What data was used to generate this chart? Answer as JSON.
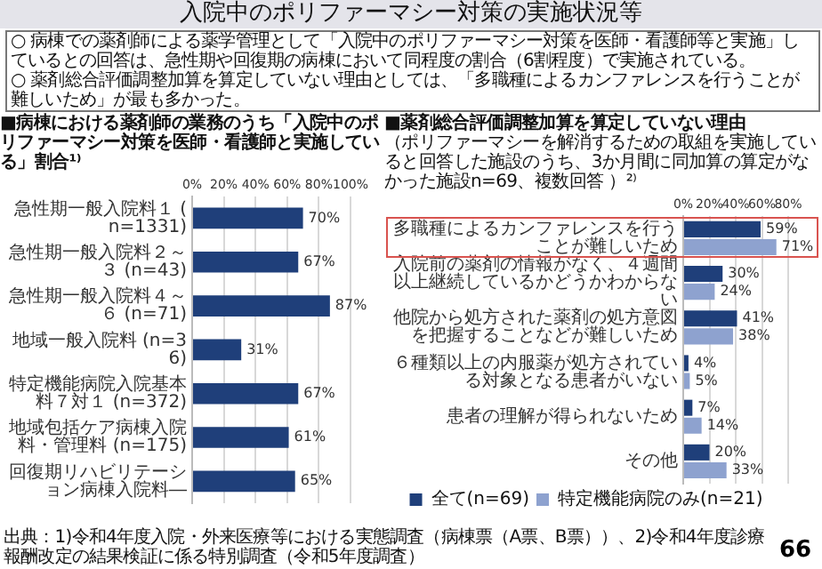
{
  "chart_data": [
    {
      "type": "other",
      "title": "入院中のポリファーマシー対策の実施状況等",
      "annotations": [
        "○ 病棟での薬剤師による薬学管理として「入院中のポリファーマシー対策を医師・看護師等と実施」しているとの回答は、急性期や回復期の病棟において同程度の割合（6割程度）で実施されている。",
        "○ 薬剤総合評価調整加算を算定していない理由としては、「多職種によるカンファレンスを行うことが難しいため」が最も多かった。"
      ]
    },
    {
      "type": "bar",
      "orientation": "horizontal",
      "title": "■病棟における薬剤師の業務のうち「入院中のポリファーマシー対策を医師・看護師と実施している」割合¹⁾",
      "categories": [
        "急性期一般入院料１ (n=1331)",
        "急性期一般入院料２～３ (n=43)",
        "急性期一般入院料４～６ (n=71)",
        "地域一般入院料 (n=36)",
        "特定機能病院入院基本料７対１ (n=372)",
        "地域包括ケア病棟入院料・管理料 (n=175)",
        "回復期リハビリテーション病棟入院料―"
      ],
      "values": [
        70,
        67,
        87,
        31,
        67,
        61,
        65
      ],
      "color": "#1f3f7a",
      "value_labels": [
        "70%",
        "67%",
        "87%",
        "31%",
        "67%",
        "61%",
        "65%"
      ],
      "xlim": [
        0,
        100
      ],
      "xticks": [
        {
          "value": 0,
          "label": "0%"
        },
        {
          "value": 20,
          "label": "20%"
        },
        {
          "value": 40,
          "label": "40%"
        },
        {
          "value": 60,
          "label": "60%"
        },
        {
          "value": 80,
          "label": "80%"
        },
        {
          "value": 100,
          "label": "100%"
        }
      ],
      "grid": "x",
      "legend": false
    },
    {
      "type": "bar",
      "orientation": "horizontal",
      "title": "■薬剤総合評価調整加算を算定していない理由",
      "subtitle": "（ポリファーマシーを解消するための取組を実施していると回答した施設のうち、3か月間に同加算の算定がなかった施設n=69、複数回答 ）²⁾",
      "categories": [
        "多職種によるカンファレンスを行うことが難しいため",
        "入院前の薬剤の情報がなく、４週間以上継続しているかどうかわからない",
        "他院から処方された薬剤の処方意図を把握することなどが難しいため",
        "６種類以上の内服薬が処方されている対象となる患者がいない",
        "患者の理解が得られないため",
        "その他"
      ],
      "series": [
        {
          "name": "全て(n=69)",
          "color": "#1f3f7a",
          "values": [
            59,
            30,
            41,
            4,
            7,
            20
          ],
          "value_labels": [
            "59%",
            "30%",
            "41%",
            "4%",
            "7%",
            "20%"
          ]
        },
        {
          "name": "特定機能病院のみ(n=21)",
          "color": "#8ea2cf",
          "values": [
            71,
            24,
            38,
            5,
            14,
            33
          ],
          "value_labels": [
            "71%",
            "24%",
            "38%",
            "5%",
            "14%",
            "33%"
          ]
        }
      ],
      "xlim": [
        0,
        80
      ],
      "xticks": [
        {
          "value": 0,
          "label": "0%"
        },
        {
          "value": 20,
          "label": "20%"
        },
        {
          "value": 40,
          "label": "40%"
        },
        {
          "value": 60,
          "label": "60%"
        },
        {
          "value": 80,
          "label": "80%"
        }
      ],
      "grid": "x",
      "legend": "bottom",
      "annotations": [
        "出典：1)令和4年度入院・外来医療等における実態調査（病棟票（A票、B票））、2)令和4年度診療報酬改定の結果検証に係る特別調査（令和5年度調査）",
        "66"
      ]
    }
  ]
}
